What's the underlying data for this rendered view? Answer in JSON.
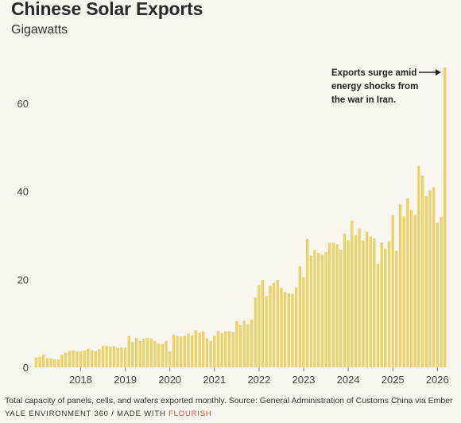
{
  "header": {
    "title": "Chinese Solar Exports",
    "subtitle": "Gigawatts"
  },
  "footer": {
    "source": "Total capacity of panels, cells, and wafers exported monthly. Source: General Administration of Customs China via Ember",
    "credit_prefix": "YALE ENVIRONMENT 360 / MADE WITH",
    "credit_link": "FLOURISH"
  },
  "chart_data": {
    "type": "bar",
    "title": "Chinese Solar Exports",
    "ylabel": "Gigawatts",
    "ylim": [
      0,
      70
    ],
    "yticks": [
      0,
      20,
      40,
      60
    ],
    "xticks": [
      "2018",
      "2019",
      "2020",
      "2021",
      "2022",
      "2023",
      "2024",
      "2025",
      "2026"
    ],
    "start": "2017-01",
    "bar_color": "#ecd26a",
    "annotation": {
      "lines": [
        "Exports surge amid",
        "energy shocks from",
        "the war in Iran."
      ],
      "target": "2026-03"
    },
    "values": [
      2.2,
      2.4,
      2.9,
      2.1,
      2.1,
      1.9,
      1.8,
      2.9,
      3.3,
      3.7,
      3.9,
      3.6,
      3.6,
      3.8,
      4.2,
      3.9,
      3.7,
      4.1,
      4.9,
      4.9,
      4.7,
      4.8,
      4.4,
      4.5,
      4.5,
      7.1,
      5.8,
      6.7,
      6.0,
      6.5,
      6.7,
      6.6,
      6.0,
      5.4,
      5.3,
      6.0,
      3.6,
      7.4,
      7.2,
      7.0,
      7.2,
      7.7,
      7.3,
      8.4,
      7.9,
      8.2,
      6.6,
      6.0,
      7.2,
      8.3,
      7.8,
      8.2,
      8.2,
      8.0,
      10.5,
      9.6,
      10.6,
      9.8,
      10.8,
      15.8,
      18.8,
      19.9,
      16.2,
      18.5,
      19.2,
      19.9,
      18.1,
      17.1,
      16.8,
      16.7,
      18.2,
      23.0,
      20.5,
      29.2,
      25.4,
      26.7,
      26.0,
      25.6,
      26.2,
      28.3,
      28.3,
      28.0,
      26.7,
      30.4,
      28.9,
      33.3,
      30.0,
      31.5,
      28.8,
      30.8,
      29.7,
      29.3,
      23.5,
      28.4,
      27.0,
      28.6,
      34.6,
      26.5,
      37.1,
      34.3,
      38.4,
      35.8,
      34.7,
      45.8,
      43.6,
      38.9,
      40.2,
      40.9,
      32.9,
      34.2,
      68.2
    ]
  }
}
